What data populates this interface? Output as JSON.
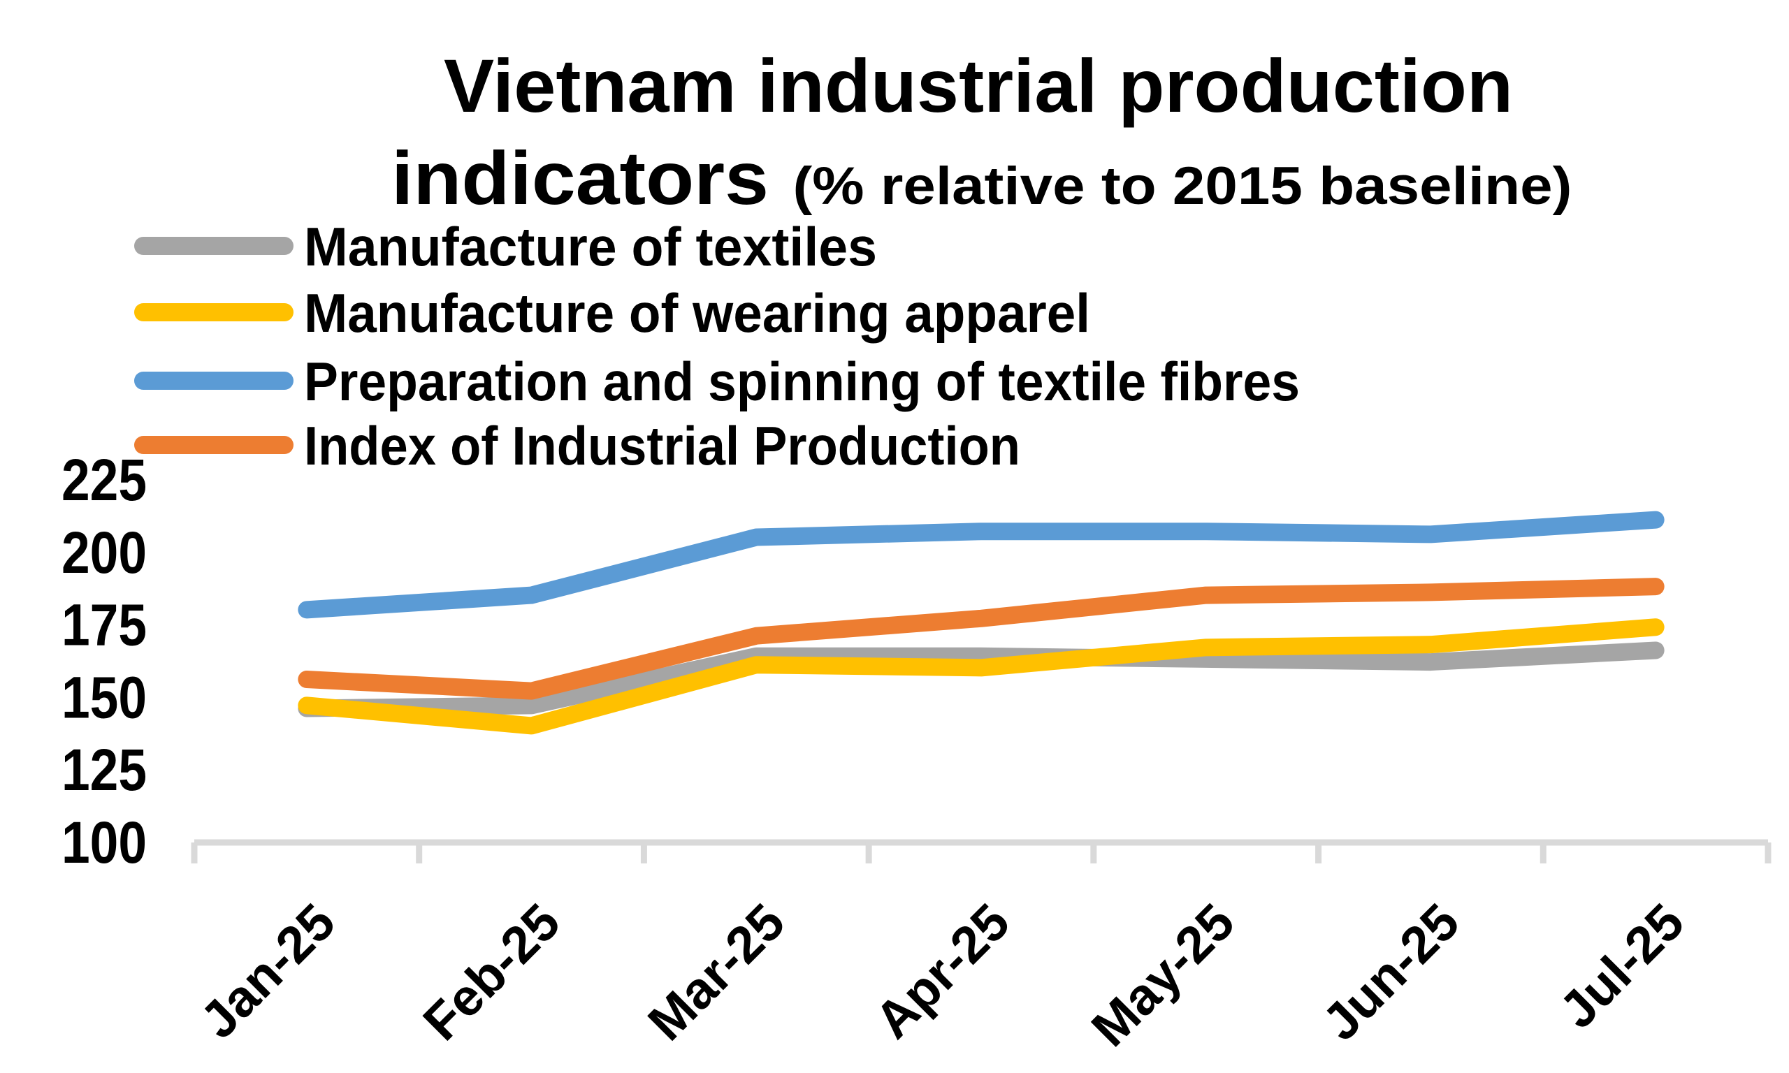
{
  "chart_data": {
    "type": "line",
    "title": {
      "line1": "Vietnam industrial production",
      "line2_main": "indicators",
      "line2_sub": "(% relative to 2015 baseline)"
    },
    "categories": [
      "Jan-25",
      "Feb-25",
      "Mar-25",
      "Apr-25",
      "May-25",
      "Jun-25",
      "Jul-25"
    ],
    "series": [
      {
        "name": "Manufacture of textiles",
        "color": "#A5A5A5",
        "values": [
          146,
          147,
          164,
          164,
          163,
          162,
          166
        ]
      },
      {
        "name": "Manufacture of wearing apparel",
        "color": "#FFC000",
        "values": [
          147,
          140,
          161,
          160,
          167,
          168,
          174
        ]
      },
      {
        "name": "Preparation and spinning of textile fibres",
        "color": "#5B9BD5",
        "values": [
          180,
          185,
          205,
          207,
          207,
          206,
          211
        ]
      },
      {
        "name": "Index of Industrial Production",
        "color": "#ED7D31",
        "values": [
          156,
          152,
          171,
          177,
          185,
          186,
          188
        ]
      }
    ],
    "y_axis": {
      "min": 100,
      "max": 225,
      "tick_step": 25,
      "ticks": [
        "225",
        "200",
        "175",
        "150",
        "125",
        "100"
      ],
      "tick_values": [
        225,
        200,
        175,
        150,
        125,
        100
      ]
    },
    "x_axis": {
      "label_rotation_deg": 45
    },
    "legend_position": "top-left",
    "grid": false,
    "axis_color": "#D9D9D9",
    "text_color": "#000000",
    "background_color": "#FFFFFF"
  }
}
